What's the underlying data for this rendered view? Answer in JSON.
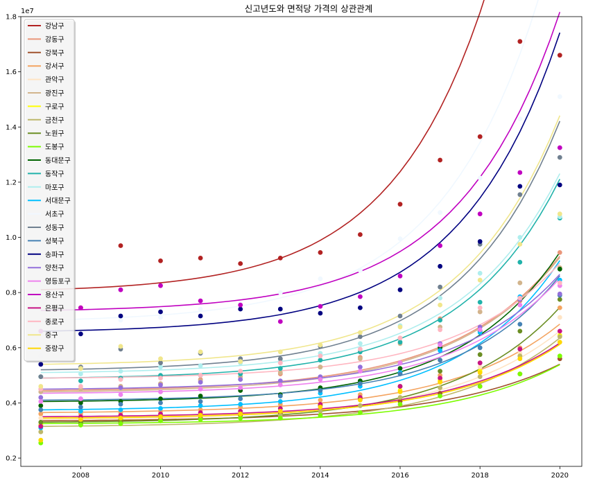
{
  "chart_data": {
    "type": "scatter",
    "title": "신고년도와 면적당 가격의 상관관계",
    "xlabel": "",
    "ylabel": "",
    "y_offset_label": "1e7",
    "xlim": [
      2006.5,
      2020.55
    ],
    "ylim": [
      1.7,
      18.0
    ],
    "y_scale_unit": 1000000.0,
    "x_ticks": [
      2008,
      2010,
      2012,
      2014,
      2016,
      2018,
      2020
    ],
    "x_tick_labels": [
      "2008",
      "2010",
      "2012",
      "2014",
      "2016",
      "2018",
      "2020"
    ],
    "y_ticks": [
      2,
      4,
      6,
      8,
      10,
      12,
      14,
      16,
      18
    ],
    "y_tick_labels": [
      "0.2",
      "0.4",
      "0.6",
      "0.8",
      "1.0",
      "1.2",
      "1.4",
      "1.6",
      "1.8"
    ],
    "legend_position": "upper-left",
    "grid": false,
    "x": [
      2007,
      2008,
      2009,
      2010,
      2011,
      2012,
      2013,
      2014,
      2015,
      2016,
      2017,
      2018,
      2019,
      2020
    ],
    "series": [
      {
        "name": "강남구",
        "color": "#b22222",
        "values": [
          6.6,
          7.45,
          9.7,
          9.15,
          9.25,
          9.05,
          9.25,
          9.45,
          10.1,
          11.2,
          12.8,
          13.65,
          17.1,
          16.6
        ]
      },
      {
        "name": "강동구",
        "color": "#e9967a",
        "values": [
          4.5,
          4.5,
          4.6,
          4.7,
          4.85,
          4.95,
          5.05,
          5.3,
          5.65,
          6.35,
          7.05,
          7.3,
          7.7,
          9.45
        ]
      },
      {
        "name": "강북구",
        "color": "#a0522d",
        "values": [
          3.2,
          3.25,
          3.3,
          3.4,
          3.45,
          3.55,
          3.6,
          3.7,
          3.9,
          4.05,
          4.35,
          4.6,
          5.05,
          5.6
        ]
      },
      {
        "name": "강서구",
        "color": "#f4a460",
        "values": [
          3.6,
          3.6,
          3.65,
          3.7,
          3.75,
          3.85,
          3.95,
          4.1,
          4.3,
          4.6,
          5.0,
          5.45,
          6.0,
          7.45
        ]
      },
      {
        "name": "관악구",
        "color": "#ffe4c4",
        "values": [
          3.45,
          3.5,
          3.55,
          3.6,
          3.65,
          3.7,
          3.8,
          3.95,
          4.15,
          4.45,
          4.85,
          5.3,
          5.8,
          7.1
        ]
      },
      {
        "name": "광진구",
        "color": "#d2b48c",
        "values": [
          4.4,
          4.5,
          4.6,
          4.7,
          4.8,
          4.95,
          5.1,
          5.3,
          5.6,
          6.15,
          6.75,
          7.3,
          8.35,
          8.9
        ]
      },
      {
        "name": "구로구",
        "color": "#ffff00",
        "values": [
          3.2,
          3.3,
          3.4,
          3.5,
          3.55,
          3.7,
          3.8,
          3.95,
          4.2,
          4.45,
          4.8,
          5.15,
          5.7,
          6.45
        ]
      },
      {
        "name": "금천구",
        "color": "#bdb76b",
        "values": [
          2.95,
          3.2,
          3.25,
          3.35,
          3.4,
          3.45,
          3.55,
          3.7,
          3.9,
          4.2,
          4.55,
          4.95,
          5.7,
          6.4
        ]
      },
      {
        "name": "노원구",
        "color": "#6b8e23",
        "values": [
          3.3,
          3.3,
          3.4,
          3.5,
          3.55,
          3.6,
          3.7,
          3.9,
          4.15,
          4.6,
          5.15,
          5.75,
          6.6,
          7.75
        ]
      },
      {
        "name": "도봉구",
        "color": "#7cfc00",
        "values": [
          2.55,
          3.2,
          3.25,
          3.35,
          3.4,
          3.45,
          3.45,
          3.55,
          3.65,
          3.95,
          4.25,
          4.6,
          5.05,
          5.7
        ]
      },
      {
        "name": "동대문구",
        "color": "#006400",
        "values": [
          3.9,
          4.0,
          4.05,
          4.15,
          4.25,
          4.45,
          4.3,
          4.55,
          4.8,
          5.25,
          6.0,
          6.6,
          7.75,
          8.85
        ]
      },
      {
        "name": "동작구",
        "color": "#20b2aa",
        "values": [
          4.95,
          4.8,
          4.9,
          5.0,
          5.0,
          5.05,
          5.25,
          5.55,
          5.85,
          6.2,
          7.0,
          7.65,
          9.1,
          10.7
        ]
      },
      {
        "name": "마포구",
        "color": "#afeeee",
        "values": [
          4.95,
          5.05,
          5.15,
          5.3,
          5.35,
          5.45,
          5.55,
          5.8,
          6.15,
          6.8,
          7.8,
          8.7,
          10.0,
          10.75
        ]
      },
      {
        "name": "서대문구",
        "color": "#00bfff",
        "values": [
          3.1,
          3.7,
          3.75,
          3.8,
          3.9,
          3.95,
          4.05,
          4.35,
          4.6,
          5.1,
          5.9,
          6.55,
          7.85,
          8.45
        ]
      },
      {
        "name": "서초구",
        "color": "#f0f8ff",
        "values": [
          5.7,
          6.5,
          7.0,
          7.1,
          7.4,
          7.6,
          8.0,
          8.5,
          8.8,
          9.95,
          10.9,
          12.15,
          14.3,
          15.1
        ]
      },
      {
        "name": "성동구",
        "color": "#708090",
        "values": [
          4.95,
          5.3,
          5.95,
          5.45,
          5.8,
          5.6,
          5.6,
          6.05,
          6.4,
          7.15,
          8.2,
          9.75,
          11.55,
          12.9
        ]
      },
      {
        "name": "성북구",
        "color": "#4682b4",
        "values": [
          3.75,
          3.85,
          3.95,
          4.0,
          4.05,
          4.15,
          4.25,
          4.45,
          4.7,
          5.05,
          5.55,
          6.0,
          6.85,
          7.9
        ]
      },
      {
        "name": "송파구",
        "color": "#000080",
        "values": [
          5.4,
          6.5,
          7.15,
          7.3,
          7.15,
          7.4,
          7.4,
          7.25,
          7.45,
          8.1,
          8.95,
          9.85,
          11.85,
          11.9
        ]
      },
      {
        "name": "양천구",
        "color": "#9370db",
        "values": [
          4.2,
          4.15,
          4.55,
          4.65,
          4.75,
          4.85,
          4.8,
          4.95,
          5.3,
          5.45,
          6.15,
          6.75,
          7.75,
          7.95
        ]
      },
      {
        "name": "영등포구",
        "color": "#ee82ee",
        "values": [
          4.05,
          4.15,
          4.3,
          4.4,
          4.5,
          4.55,
          4.65,
          4.85,
          5.15,
          5.45,
          6.1,
          6.65,
          7.55,
          8.25
        ]
      },
      {
        "name": "용산구",
        "color": "#c000c0",
        "values": [
          6.6,
          7.45,
          8.1,
          8.25,
          7.7,
          7.55,
          6.95,
          7.5,
          7.85,
          8.6,
          9.7,
          10.85,
          12.35,
          13.25
        ]
      },
      {
        "name": "은평구",
        "color": "#c71585",
        "values": [
          3.15,
          3.5,
          3.55,
          3.6,
          3.65,
          3.7,
          3.8,
          3.95,
          4.2,
          4.6,
          4.9,
          5.45,
          5.95,
          6.6
        ]
      },
      {
        "name": "종로구",
        "color": "#ffb6c1",
        "values": [
          4.5,
          4.6,
          4.85,
          4.9,
          5.0,
          5.15,
          5.45,
          5.7,
          5.95,
          6.35,
          6.65,
          7.45,
          7.8,
          8.35
        ]
      },
      {
        "name": "중구",
        "color": "#f0e68c",
        "values": [
          4.6,
          5.25,
          6.05,
          5.6,
          5.85,
          5.5,
          5.85,
          6.1,
          6.55,
          6.75,
          7.55,
          8.45,
          9.75,
          10.85
        ]
      },
      {
        "name": "중랑구",
        "color": "#ffd700",
        "values": [
          2.65,
          3.4,
          3.45,
          3.5,
          3.55,
          3.6,
          3.7,
          3.85,
          4.1,
          4.4,
          4.75,
          5.1,
          5.6,
          6.2
        ]
      }
    ],
    "trend": [
      {
        "name": "강남구",
        "c": 8.1,
        "a": 0.1,
        "k": 0.42
      },
      {
        "name": "강동구",
        "c": 4.45,
        "a": 0.04,
        "k": 0.37
      },
      {
        "name": "강북구",
        "c": 3.35,
        "a": 0.025,
        "k": 0.34
      },
      {
        "name": "강서구",
        "c": 3.65,
        "a": 0.03,
        "k": 0.36
      },
      {
        "name": "관악구",
        "c": 3.4,
        "a": 0.03,
        "k": 0.36
      },
      {
        "name": "광진구",
        "c": 4.4,
        "a": 0.04,
        "k": 0.37
      },
      {
        "name": "구로구",
        "c": 3.45,
        "a": 0.025,
        "k": 0.36
      },
      {
        "name": "금천구",
        "c": 3.15,
        "a": 0.03,
        "k": 0.36
      },
      {
        "name": "노원구",
        "c": 3.3,
        "a": 0.03,
        "k": 0.38
      },
      {
        "name": "도봉구",
        "c": 3.25,
        "a": 0.02,
        "k": 0.36
      },
      {
        "name": "동대문구",
        "c": 4.05,
        "a": 0.03,
        "k": 0.4
      },
      {
        "name": "동작구",
        "c": 4.9,
        "a": 0.04,
        "k": 0.4
      },
      {
        "name": "마포구",
        "c": 5.1,
        "a": 0.04,
        "k": 0.4
      },
      {
        "name": "서대문구",
        "c": 3.75,
        "a": 0.03,
        "k": 0.4
      },
      {
        "name": "서초구",
        "c": 7.0,
        "a": 0.08,
        "k": 0.4
      },
      {
        "name": "성동구",
        "c": 5.2,
        "a": 0.05,
        "k": 0.4
      },
      {
        "name": "성북구",
        "c": 4.1,
        "a": 0.025,
        "k": 0.4
      },
      {
        "name": "송파구",
        "c": 6.6,
        "a": 0.06,
        "k": 0.4
      },
      {
        "name": "양천구",
        "c": 4.5,
        "a": 0.03,
        "k": 0.38
      },
      {
        "name": "영등포구",
        "c": 4.35,
        "a": 0.03,
        "k": 0.38
      },
      {
        "name": "용산구",
        "c": 7.35,
        "a": 0.06,
        "k": 0.4
      },
      {
        "name": "은평구",
        "c": 3.5,
        "a": 0.025,
        "k": 0.36
      },
      {
        "name": "종로구",
        "c": 4.9,
        "a": 0.03,
        "k": 0.38
      },
      {
        "name": "중구",
        "c": 5.4,
        "a": 0.05,
        "k": 0.4
      },
      {
        "name": "중랑구",
        "c": 3.45,
        "a": 0.025,
        "k": 0.36
      }
    ]
  }
}
